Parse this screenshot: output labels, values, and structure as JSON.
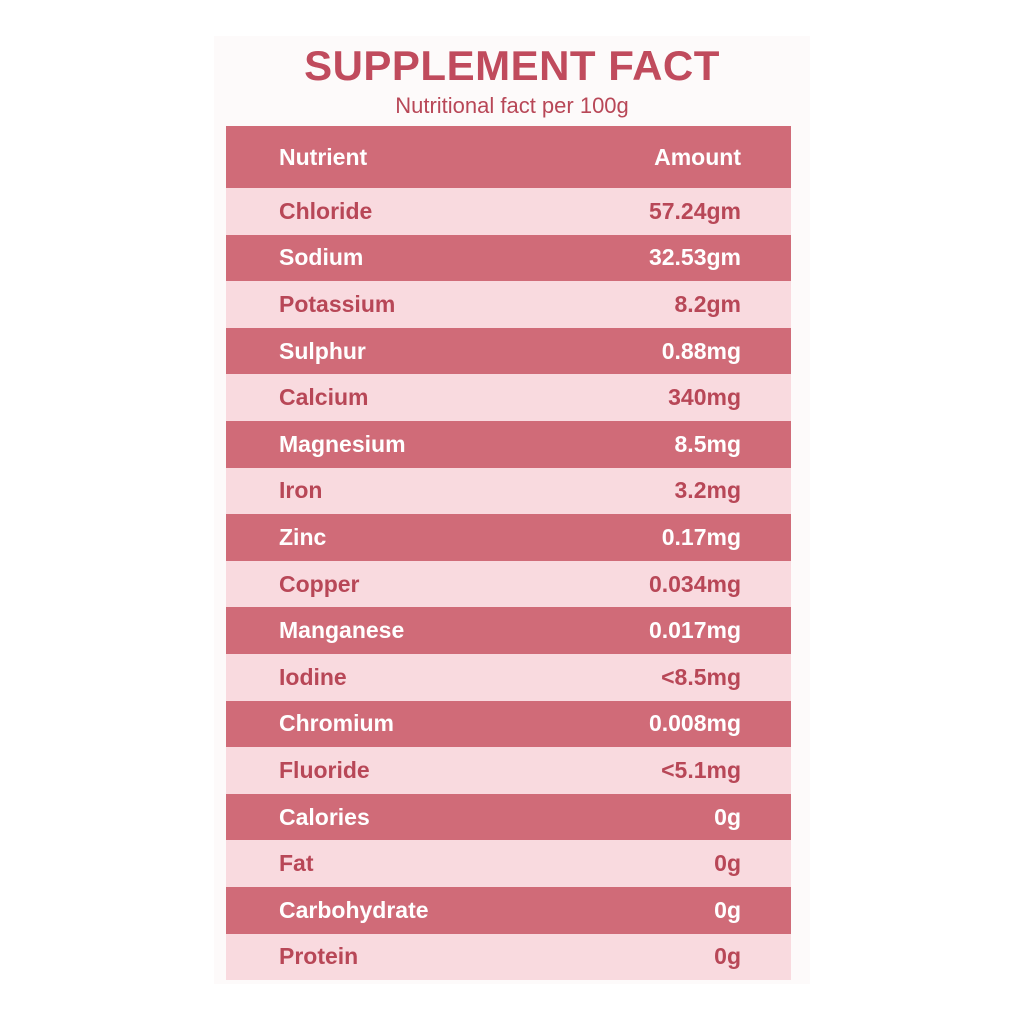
{
  "header": {
    "title": "SUPPLEMENT FACT",
    "subtitle": "Nutritional fact per 100g"
  },
  "table": {
    "columns": [
      "Nutrient",
      "Amount"
    ],
    "rows": [
      [
        "Chloride",
        "57.24gm"
      ],
      [
        "Sodium",
        "32.53gm"
      ],
      [
        "Potassium",
        "8.2gm"
      ],
      [
        "Sulphur",
        "0.88mg"
      ],
      [
        "Calcium",
        "340mg"
      ],
      [
        "Magnesium",
        "8.5mg"
      ],
      [
        "Iron",
        "3.2mg"
      ],
      [
        "Zinc",
        "0.17mg"
      ],
      [
        "Copper",
        "0.034mg"
      ],
      [
        "Manganese",
        "0.017mg"
      ],
      [
        "Iodine",
        "<8.5mg"
      ],
      [
        "Chromium",
        "0.008mg"
      ],
      [
        "Fluoride",
        "<5.1mg"
      ],
      [
        "Calories",
        "0g"
      ],
      [
        "Fat",
        "0g"
      ],
      [
        "Carbohydrate",
        "0g"
      ],
      [
        "Protein",
        "0g"
      ]
    ]
  }
}
